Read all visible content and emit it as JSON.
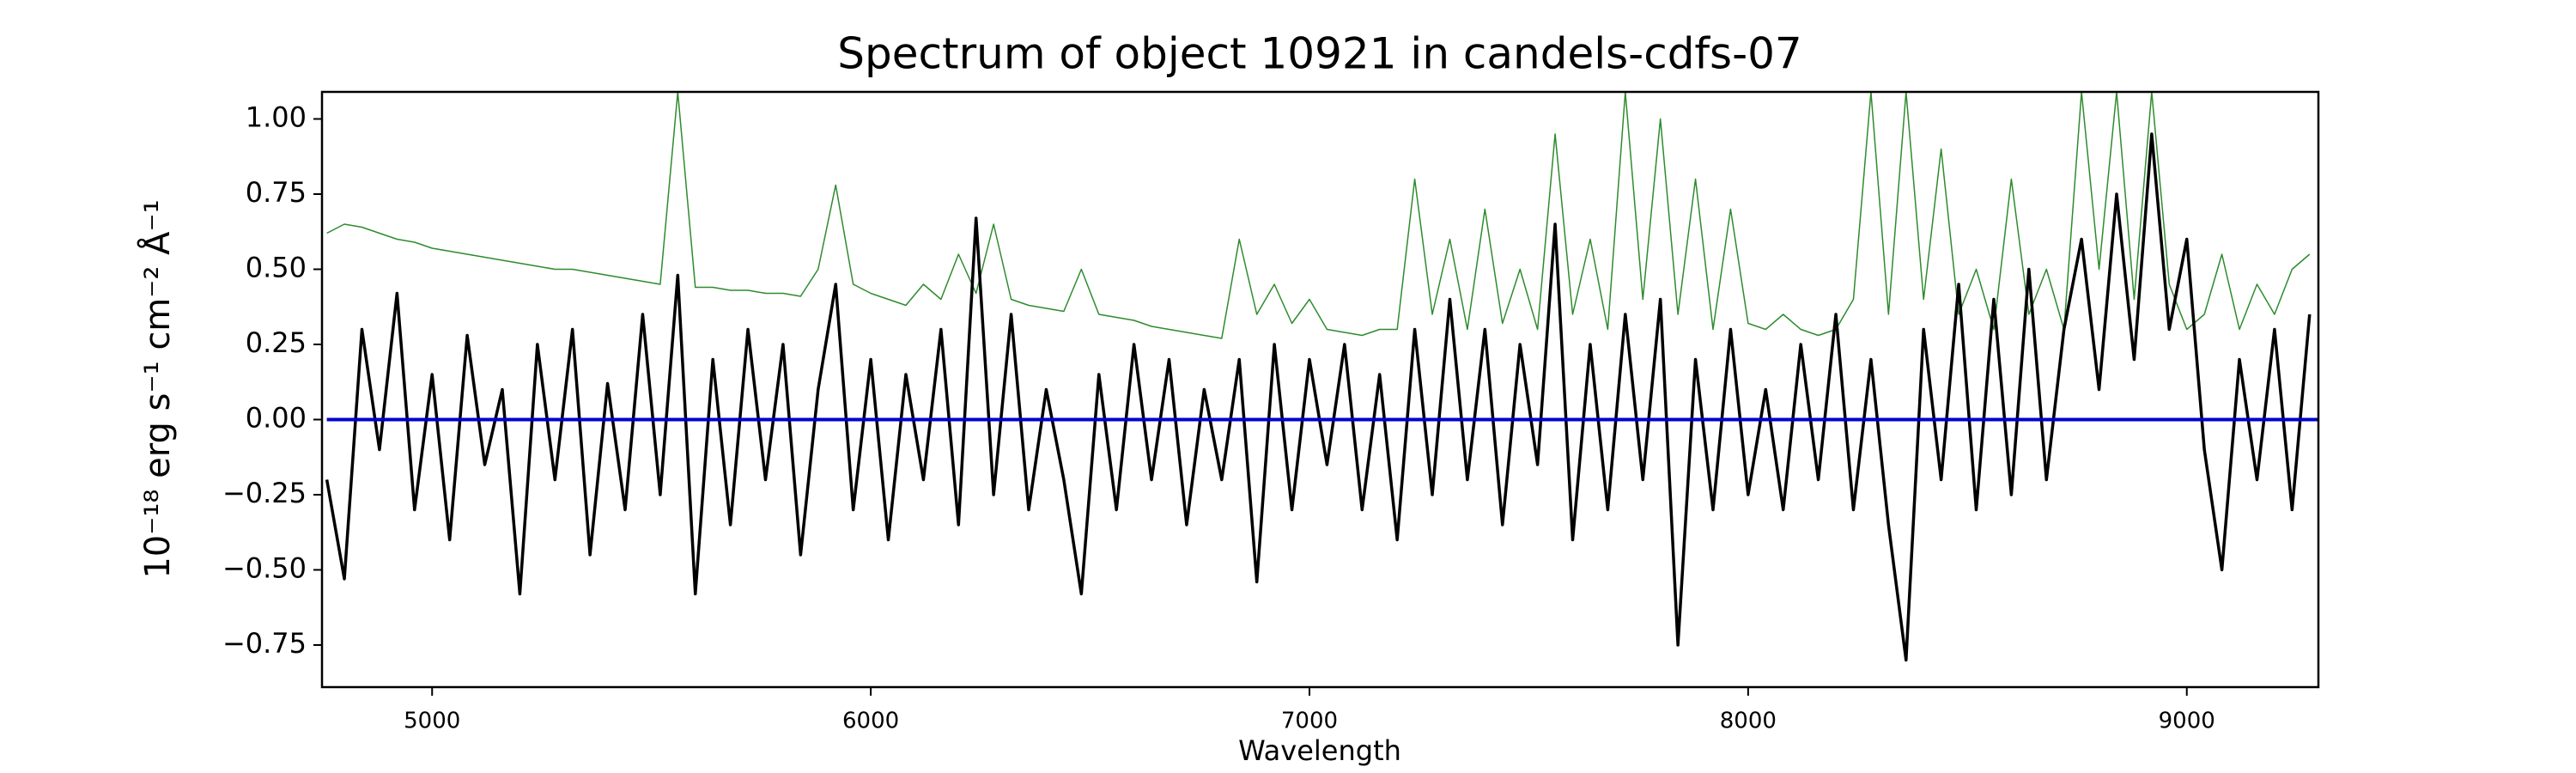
{
  "chart_data": {
    "type": "line",
    "title": "Spectrum of object 10921 in candels-cdfs-07",
    "x_label": "Wavelength",
    "y_label": "10⁻¹⁸ erg s⁻¹ cm⁻² Å⁻¹",
    "xlim": [
      4749,
      9300
    ],
    "ylim": [
      -0.89,
      1.09
    ],
    "xticks": [
      5000,
      6000,
      7000,
      8000,
      9000
    ],
    "yticks": [
      {
        "value": -0.75,
        "label": "−0.75"
      },
      {
        "value": -0.5,
        "label": "−0.50"
      },
      {
        "value": -0.25,
        "label": "−0.25"
      },
      {
        "value": 0,
        "label": "0.00"
      },
      0.25,
      {
        "value": 0.5,
        "label": "0.50"
      },
      0.75,
      {
        "value": 1,
        "label": "1.00"
      }
    ],
    "x": [
      4760,
      4800,
      4840,
      4880,
      4920,
      4960,
      5000,
      5040,
      5080,
      5120,
      5160,
      5200,
      5240,
      5280,
      5320,
      5360,
      5400,
      5440,
      5480,
      5520,
      5560,
      5600,
      5640,
      5680,
      5720,
      5760,
      5800,
      5840,
      5880,
      5920,
      5960,
      6000,
      6040,
      6080,
      6120,
      6160,
      6200,
      6240,
      6280,
      6320,
      6360,
      6400,
      6440,
      6480,
      6520,
      6560,
      6600,
      6640,
      6680,
      6720,
      6760,
      6800,
      6840,
      6880,
      6920,
      6960,
      7000,
      7040,
      7080,
      7120,
      7160,
      7200,
      7240,
      7280,
      7320,
      7360,
      7400,
      7440,
      7480,
      7520,
      7560,
      7600,
      7640,
      7680,
      7720,
      7760,
      7800,
      7840,
      7880,
      7920,
      7960,
      8000,
      8040,
      8080,
      8120,
      8160,
      8200,
      8240,
      8280,
      8320,
      8360,
      8400,
      8440,
      8480,
      8520,
      8560,
      8600,
      8640,
      8680,
      8720,
      8760,
      8800,
      8840,
      8880,
      8920,
      8960,
      9000,
      9040,
      9080,
      9120,
      9160,
      9200,
      9240,
      9280
    ],
    "series": [
      {
        "color": "#2e8b2e",
        "values": [
          0.62,
          0.65,
          0.64,
          0.62,
          0.6,
          0.59,
          0.57,
          0.56,
          0.55,
          0.54,
          0.53,
          0.52,
          0.51,
          0.5,
          0.5,
          0.49,
          0.48,
          0.47,
          0.46,
          0.45,
          1.09,
          0.44,
          0.44,
          0.43,
          0.43,
          0.42,
          0.42,
          0.41,
          0.5,
          0.78,
          0.45,
          0.42,
          0.4,
          0.38,
          0.45,
          0.4,
          0.55,
          0.42,
          0.65,
          0.4,
          0.38,
          0.37,
          0.36,
          0.5,
          0.35,
          0.34,
          0.33,
          0.31,
          0.3,
          0.29,
          0.28,
          0.27,
          0.6,
          0.35,
          0.45,
          0.32,
          0.4,
          0.3,
          0.29,
          0.28,
          0.3,
          0.3,
          0.8,
          0.35,
          0.6,
          0.3,
          0.7,
          0.32,
          0.5,
          0.3,
          0.95,
          0.35,
          0.6,
          0.3,
          1.09,
          0.4,
          1.0,
          0.35,
          0.8,
          0.3,
          0.7,
          0.32,
          0.3,
          0.35,
          0.3,
          0.28,
          0.3,
          0.4,
          1.09,
          0.35,
          1.09,
          0.4,
          0.9,
          0.35,
          0.5,
          0.3,
          0.8,
          0.35,
          0.5,
          0.3,
          1.09,
          0.5,
          1.09,
          0.4,
          1.09,
          0.45,
          0.3,
          0.35,
          0.55,
          0.3,
          0.45,
          0.35,
          0.5,
          0.55
        ]
      },
      {
        "color": "#000000",
        "values": [
          -0.2,
          -0.53,
          0.3,
          -0.1,
          0.42,
          -0.3,
          0.15,
          -0.4,
          0.28,
          -0.15,
          0.1,
          -0.58,
          0.25,
          -0.2,
          0.3,
          -0.45,
          0.12,
          -0.3,
          0.35,
          -0.25,
          0.48,
          -0.58,
          0.2,
          -0.35,
          0.3,
          -0.2,
          0.25,
          -0.45,
          0.1,
          0.45,
          -0.3,
          0.2,
          -0.4,
          0.15,
          -0.2,
          0.3,
          -0.35,
          0.67,
          -0.25,
          0.35,
          -0.3,
          0.1,
          -0.2,
          -0.58,
          0.15,
          -0.3,
          0.25,
          -0.2,
          0.2,
          -0.35,
          0.1,
          -0.2,
          0.2,
          -0.54,
          0.25,
          -0.3,
          0.2,
          -0.15,
          0.25,
          -0.3,
          0.15,
          -0.4,
          0.3,
          -0.25,
          0.4,
          -0.2,
          0.3,
          -0.35,
          0.25,
          -0.15,
          0.65,
          -0.4,
          0.25,
          -0.3,
          0.35,
          -0.2,
          0.4,
          -0.75,
          0.2,
          -0.3,
          0.3,
          -0.25,
          0.1,
          -0.3,
          0.25,
          -0.2,
          0.35,
          -0.3,
          0.2,
          -0.35,
          -0.8,
          0.3,
          -0.2,
          0.45,
          -0.3,
          0.4,
          -0.25,
          0.5,
          -0.2,
          0.3,
          0.6,
          0.1,
          0.75,
          0.2,
          0.95,
          0.3,
          0.6,
          -0.1,
          -0.5,
          0.2,
          -0.2,
          0.3,
          -0.3,
          0.35
        ]
      },
      {
        "color": "#0000cc",
        "x": [
          4760,
          9300
        ],
        "values": [
          0,
          0
        ]
      }
    ]
  }
}
